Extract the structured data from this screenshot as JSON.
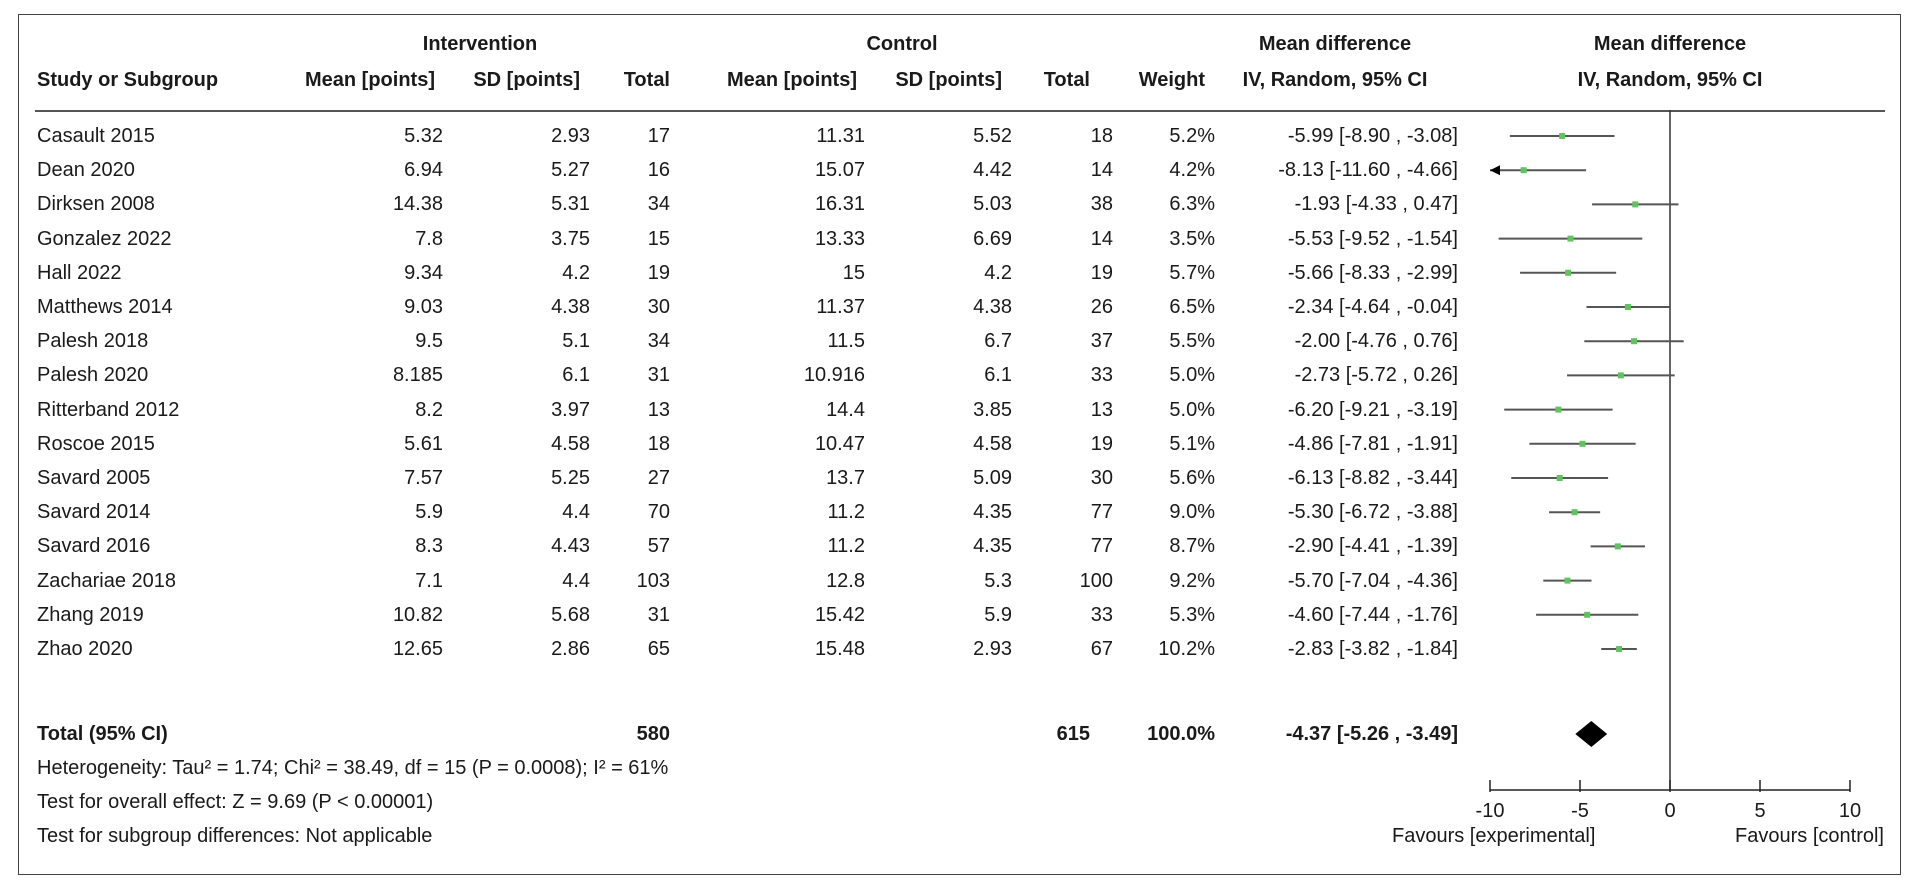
{
  "chart_data": {
    "type": "forest",
    "header": {
      "group_intervention": "Intervention",
      "group_control": "Control",
      "col_study": "Study or Subgroup",
      "col_mean": "Mean [points]",
      "col_sd": "SD [points]",
      "col_total": "Total",
      "col_weight": "Weight",
      "md_title": "Mean difference",
      "md_method": "IV, Random, 95% CI",
      "plot_title": "Mean difference",
      "plot_method": "IV, Random, 95% CI"
    },
    "studies": [
      {
        "name": "Casault 2015",
        "i_mean": "5.32",
        "i_sd": "2.93",
        "i_total": "17",
        "c_mean": "11.31",
        "c_sd": "5.52",
        "c_total": "18",
        "weight": "5.2%",
        "ci_text": "-5.99 [-8.90 , -3.08]",
        "md": -5.99,
        "lo": -8.9,
        "hi": -3.08
      },
      {
        "name": "Dean 2020",
        "i_mean": "6.94",
        "i_sd": "5.27",
        "i_total": "16",
        "c_mean": "15.07",
        "c_sd": "4.42",
        "c_total": "14",
        "weight": "4.2%",
        "ci_text": "-8.13 [-11.60 , -4.66]",
        "md": -8.13,
        "lo": -11.6,
        "hi": -4.66
      },
      {
        "name": "Dirksen 2008",
        "i_mean": "14.38",
        "i_sd": "5.31",
        "i_total": "34",
        "c_mean": "16.31",
        "c_sd": "5.03",
        "c_total": "38",
        "weight": "6.3%",
        "ci_text": "-1.93 [-4.33 , 0.47]",
        "md": -1.93,
        "lo": -4.33,
        "hi": 0.47
      },
      {
        "name": "Gonzalez 2022",
        "i_mean": "7.8",
        "i_sd": "3.75",
        "i_total": "15",
        "c_mean": "13.33",
        "c_sd": "6.69",
        "c_total": "14",
        "weight": "3.5%",
        "ci_text": "-5.53 [-9.52 , -1.54]",
        "md": -5.53,
        "lo": -9.52,
        "hi": -1.54
      },
      {
        "name": "Hall 2022",
        "i_mean": "9.34",
        "i_sd": "4.2",
        "i_total": "19",
        "c_mean": "15",
        "c_sd": "4.2",
        "c_total": "19",
        "weight": "5.7%",
        "ci_text": "-5.66 [-8.33 , -2.99]",
        "md": -5.66,
        "lo": -8.33,
        "hi": -2.99
      },
      {
        "name": "Matthews 2014",
        "i_mean": "9.03",
        "i_sd": "4.38",
        "i_total": "30",
        "c_mean": "11.37",
        "c_sd": "4.38",
        "c_total": "26",
        "weight": "6.5%",
        "ci_text": "-2.34 [-4.64 , -0.04]",
        "md": -2.34,
        "lo": -4.64,
        "hi": -0.04
      },
      {
        "name": "Palesh 2018",
        "i_mean": "9.5",
        "i_sd": "5.1",
        "i_total": "34",
        "c_mean": "11.5",
        "c_sd": "6.7",
        "c_total": "37",
        "weight": "5.5%",
        "ci_text": "-2.00 [-4.76 , 0.76]",
        "md": -2.0,
        "lo": -4.76,
        "hi": 0.76
      },
      {
        "name": "Palesh 2020",
        "i_mean": "8.185",
        "i_sd": "6.1",
        "i_total": "31",
        "c_mean": "10.916",
        "c_sd": "6.1",
        "c_total": "33",
        "weight": "5.0%",
        "ci_text": "-2.73 [-5.72 , 0.26]",
        "md": -2.73,
        "lo": -5.72,
        "hi": 0.26
      },
      {
        "name": "Ritterband 2012",
        "i_mean": "8.2",
        "i_sd": "3.97",
        "i_total": "13",
        "c_mean": "14.4",
        "c_sd": "3.85",
        "c_total": "13",
        "weight": "5.0%",
        "ci_text": "-6.20 [-9.21 , -3.19]",
        "md": -6.2,
        "lo": -9.21,
        "hi": -3.19
      },
      {
        "name": "Roscoe 2015",
        "i_mean": "5.61",
        "i_sd": "4.58",
        "i_total": "18",
        "c_mean": "10.47",
        "c_sd": "4.58",
        "c_total": "19",
        "weight": "5.1%",
        "ci_text": "-4.86 [-7.81 , -1.91]",
        "md": -4.86,
        "lo": -7.81,
        "hi": -1.91
      },
      {
        "name": "Savard 2005",
        "i_mean": "7.57",
        "i_sd": "5.25",
        "i_total": "27",
        "c_mean": "13.7",
        "c_sd": "5.09",
        "c_total": "30",
        "weight": "5.6%",
        "ci_text": "-6.13 [-8.82 , -3.44]",
        "md": -6.13,
        "lo": -8.82,
        "hi": -3.44
      },
      {
        "name": "Savard 2014",
        "i_mean": "5.9",
        "i_sd": "4.4",
        "i_total": "70",
        "c_mean": "11.2",
        "c_sd": "4.35",
        "c_total": "77",
        "weight": "9.0%",
        "ci_text": "-5.30 [-6.72 , -3.88]",
        "md": -5.3,
        "lo": -6.72,
        "hi": -3.88
      },
      {
        "name": "Savard 2016",
        "i_mean": "8.3",
        "i_sd": "4.43",
        "i_total": "57",
        "c_mean": "11.2",
        "c_sd": "4.35",
        "c_total": "77",
        "weight": "8.7%",
        "ci_text": "-2.90 [-4.41 , -1.39]",
        "md": -2.9,
        "lo": -4.41,
        "hi": -1.39
      },
      {
        "name": "Zachariae 2018",
        "i_mean": "7.1",
        "i_sd": "4.4",
        "i_total": "103",
        "c_mean": "12.8",
        "c_sd": "5.3",
        "c_total": "100",
        "weight": "9.2%",
        "ci_text": "-5.70 [-7.04 , -4.36]",
        "md": -5.7,
        "lo": -7.04,
        "hi": -4.36
      },
      {
        "name": "Zhang 2019",
        "i_mean": "10.82",
        "i_sd": "5.68",
        "i_total": "31",
        "c_mean": "15.42",
        "c_sd": "5.9",
        "c_total": "33",
        "weight": "5.3%",
        "ci_text": "-4.60 [-7.44 , -1.76]",
        "md": -4.6,
        "lo": -7.44,
        "hi": -1.76
      },
      {
        "name": "Zhao 2020",
        "i_mean": "12.65",
        "i_sd": "2.86",
        "i_total": "65",
        "c_mean": "15.48",
        "c_sd": "2.93",
        "c_total": "67",
        "weight": "10.2%",
        "ci_text": "-2.83 [-3.82 , -1.84]",
        "md": -2.83,
        "lo": -3.82,
        "hi": -1.84
      }
    ],
    "total": {
      "label": "Total (95% CI)",
      "i_total": "580",
      "c_total": "615",
      "weight": "100.0%",
      "ci_text": "-4.37 [-5.26 , -3.49]",
      "md": -4.37,
      "lo": -5.26,
      "hi": -3.49
    },
    "footnotes": {
      "heterogeneity": "Heterogeneity: Tau² = 1.74; Chi² = 38.49, df = 15 (P = 0.0008); I² = 61%",
      "overall": "Test for overall effect: Z = 9.69 (P < 0.00001)",
      "subgroup": "Test for subgroup differences: Not applicable"
    },
    "axis": {
      "xlim": [
        -10,
        10
      ],
      "ticks": [
        -10,
        -5,
        0,
        5,
        10
      ],
      "tick_labels": [
        "-10",
        "-5",
        "0",
        "5",
        "10"
      ],
      "left_label": "Favours [experimental]",
      "right_label": "Favours [control]"
    },
    "colors": {
      "point": "#5ec45e",
      "line": "#555555",
      "diamond": "#000000"
    }
  }
}
